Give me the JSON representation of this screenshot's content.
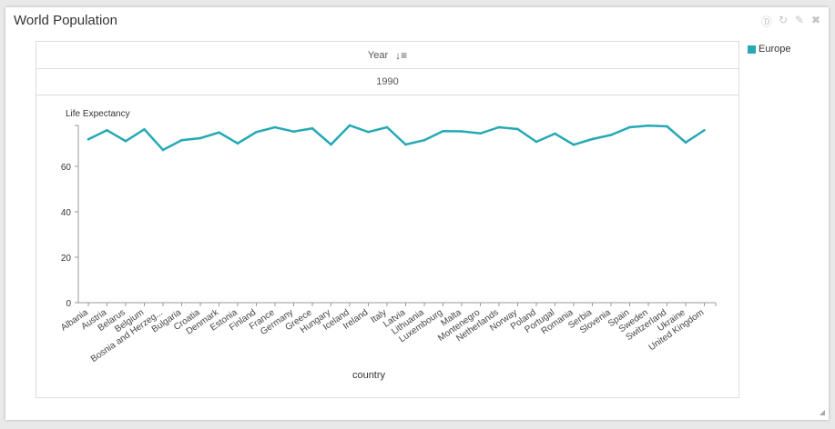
{
  "widget": {
    "title": "World Population"
  },
  "toolbar_icons": [
    "download-icon",
    "refresh-icon",
    "edit-icon",
    "close-icon"
  ],
  "filters": {
    "field_label": "Year",
    "sort_icon": "sort-icon",
    "value": "1990"
  },
  "legend": {
    "items": [
      {
        "label": "Europe",
        "color": "#26a9b5"
      }
    ]
  },
  "chart_data": {
    "type": "line",
    "ylabel": "Life Expectancy",
    "xlabel": "country",
    "ylim": [
      0,
      78
    ],
    "yticks": [
      0,
      20,
      40,
      60
    ],
    "categories": [
      "Albania",
      "Austria",
      "Belarus",
      "Belgium",
      "Bosnia and Herzeg...",
      "Bulgaria",
      "Croatia",
      "Denmark",
      "Estonia",
      "Finland",
      "France",
      "Germany",
      "Greece",
      "Hungary",
      "Iceland",
      "Ireland",
      "Italy",
      "Latvia",
      "Lithuania",
      "Luxembourg",
      "Malta",
      "Montenegro",
      "Netherlands",
      "Norway",
      "Poland",
      "Portugal",
      "Romania",
      "Serbia",
      "Slovenia",
      "Spain",
      "Sweden",
      "Switzerland",
      "Ukraine",
      "United Kingdom"
    ],
    "series": [
      {
        "name": "Europe",
        "color": "#26a9b5",
        "values": [
          71.9,
          75.9,
          71.1,
          76.3,
          67.2,
          71.5,
          72.4,
          74.9,
          70.1,
          75.1,
          77.2,
          75.3,
          76.7,
          69.6,
          78.0,
          75.1,
          77.2,
          69.6,
          71.5,
          75.5,
          75.4,
          74.5,
          77.2,
          76.4,
          70.8,
          74.4,
          69.5,
          72.0,
          73.8,
          77.2,
          77.9,
          77.6,
          70.5,
          75.9
        ]
      }
    ]
  }
}
